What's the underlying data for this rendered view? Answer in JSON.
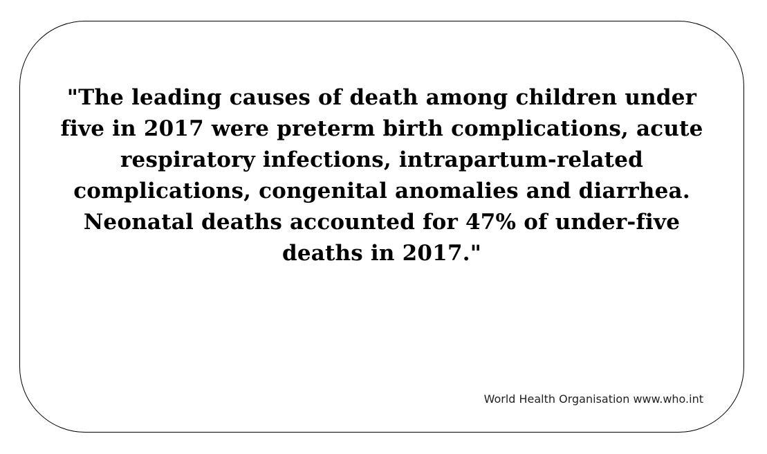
{
  "quote": {
    "lines": [
      "\"The leading causes of death among children under",
      "five in 2017 were preterm birth complications, acute",
      "respiratory infections, intrapartum-related",
      "complications, congenital anomalies and diarrhea.",
      "Neonatal deaths accounted for 47% of under-five",
      "deaths in 2017.\""
    ]
  },
  "attribution": "World Health Organisation www.who.int",
  "colors": {
    "text": "#000000",
    "border": "#000000",
    "background": "#ffffff"
  }
}
